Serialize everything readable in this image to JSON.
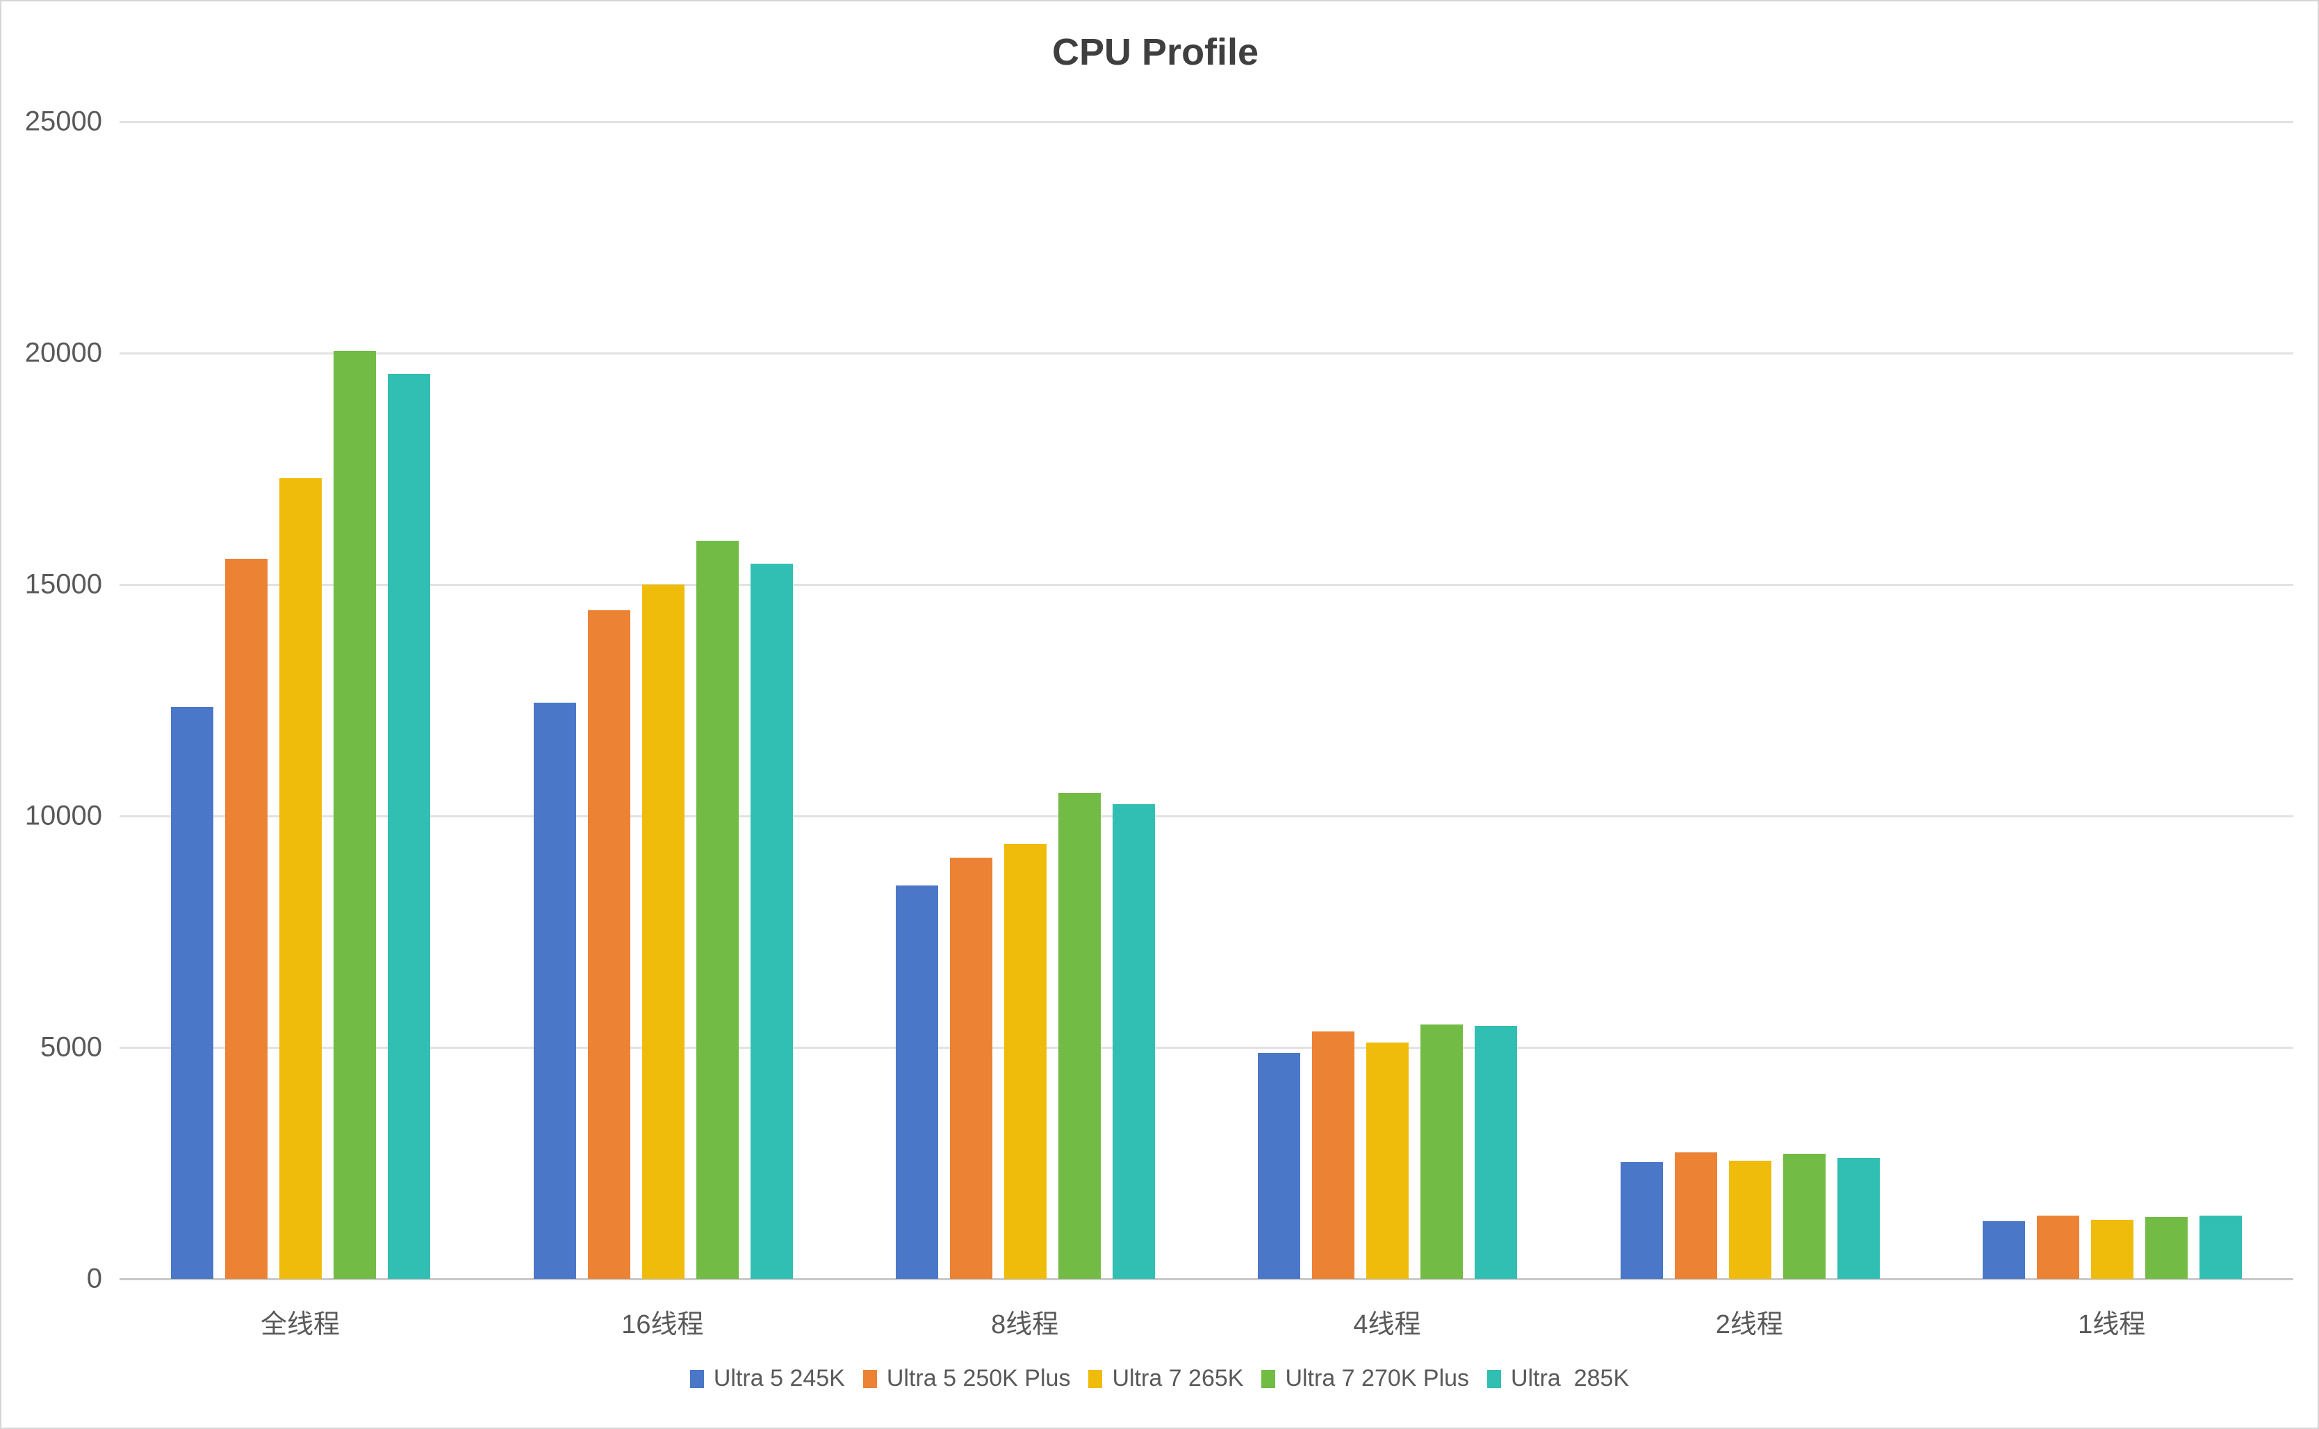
{
  "chart_data": {
    "type": "bar",
    "title": "CPU Profile",
    "categories": [
      "全线程",
      "16线程",
      "8线程",
      "4线程",
      "2线程",
      "1线程"
    ],
    "series": [
      {
        "name": "Ultra 5 245K",
        "color": "#4a77c8",
        "values": [
          12350,
          12450,
          8500,
          4880,
          2520,
          1250
        ]
      },
      {
        "name": "Ultra 5 250K Plus",
        "color": "#ec8234",
        "values": [
          15550,
          14450,
          9100,
          5350,
          2730,
          1370
        ]
      },
      {
        "name": "Ultra 7 265K",
        "color": "#f0bc0b",
        "values": [
          17300,
          15000,
          9400,
          5100,
          2560,
          1280
        ]
      },
      {
        "name": "Ultra 7 270K Plus",
        "color": "#72bb44",
        "values": [
          20050,
          15950,
          10500,
          5500,
          2700,
          1340
        ]
      },
      {
        "name": "Ultra  285K",
        "color": "#32bfb3",
        "values": [
          19550,
          15450,
          10250,
          5470,
          2610,
          1370
        ]
      }
    ],
    "ylim": [
      0,
      25000
    ],
    "y_tick_step": 5000,
    "y_tick_labels": [
      "0",
      "5000",
      "10000",
      "15000",
      "20000",
      "25000"
    ],
    "grid": "horizontal",
    "legend_position": "bottom",
    "colors": {
      "axis_text": "#595959",
      "title_text": "#3f3f3f",
      "gridline": "#e2e2e2",
      "baseline": "#c9c9c9",
      "background": "#ffffff",
      "border": "#d6d6d6"
    }
  }
}
